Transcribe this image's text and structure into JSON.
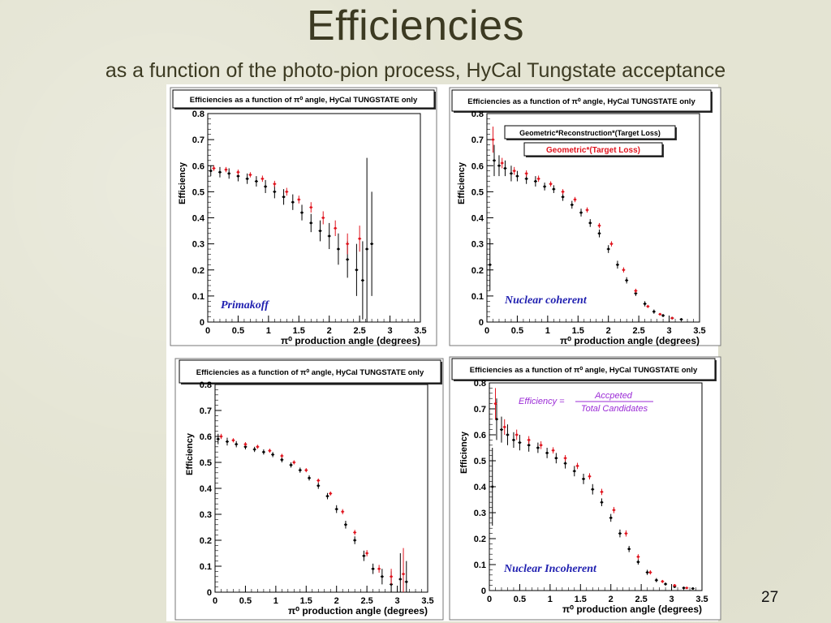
{
  "slide": {
    "title": "Efficiencies",
    "subtitle": "as a function of the photo-pion process, HyCal Tungstate acceptance",
    "page_number": "27"
  },
  "colors": {
    "background": "#e4e4d3",
    "title_text": "#3c3a22",
    "series_black": "#000000",
    "series_red": "#e0141e",
    "annotation_blue": "#1f1fb0",
    "formula_purple": "#9b2bd6"
  },
  "chart_data": [
    {
      "type": "scatter",
      "panel": "top-left",
      "title": "Efficiencies as a function of π⁰ angle, HyCal TUNGSTATE only",
      "xlabel": "π⁰ production angle (degrees)",
      "ylabel": "Efficiency",
      "xlim": [
        0,
        3.5
      ],
      "ylim": [
        0,
        0.8
      ],
      "xticks": [
        "0",
        "0.5",
        "1",
        "1.5",
        "2",
        "2.5",
        "3",
        "3.5"
      ],
      "yticks": [
        "0",
        "0.1",
        "0.2",
        "0.3",
        "0.4",
        "0.5",
        "0.6",
        "0.7",
        "0.8"
      ],
      "annotation": "Primakoff",
      "grid": false,
      "series": [
        {
          "color": "#000000",
          "x": [
            0.05,
            0.2,
            0.35,
            0.5,
            0.65,
            0.8,
            0.95,
            1.1,
            1.25,
            1.4,
            1.55,
            1.7,
            1.85,
            2.0,
            2.15,
            2.3,
            2.45,
            2.55,
            2.62,
            2.7
          ],
          "y": [
            0.58,
            0.575,
            0.57,
            0.56,
            0.55,
            0.54,
            0.52,
            0.5,
            0.48,
            0.46,
            0.42,
            0.38,
            0.35,
            0.33,
            0.28,
            0.24,
            0.2,
            0.16,
            0.28,
            0.3
          ],
          "err": [
            0.02,
            0.02,
            0.02,
            0.02,
            0.02,
            0.02,
            0.025,
            0.025,
            0.03,
            0.03,
            0.03,
            0.035,
            0.04,
            0.05,
            0.06,
            0.07,
            0.1,
            0.15,
            0.35,
            0.2
          ]
        },
        {
          "color": "#e0141e",
          "x": [
            0.1,
            0.3,
            0.5,
            0.7,
            0.9,
            1.1,
            1.3,
            1.5,
            1.7,
            1.9,
            2.1,
            2.3,
            2.5
          ],
          "y": [
            0.59,
            0.585,
            0.575,
            0.565,
            0.55,
            0.53,
            0.5,
            0.47,
            0.44,
            0.4,
            0.36,
            0.3,
            0.32
          ],
          "err": [
            0.01,
            0.01,
            0.01,
            0.01,
            0.012,
            0.012,
            0.015,
            0.015,
            0.02,
            0.025,
            0.03,
            0.04,
            0.05
          ]
        }
      ]
    },
    {
      "type": "scatter",
      "panel": "top-right",
      "title": "Efficiencies as a function of π⁰ angle, HyCal TUNGSTATE only",
      "xlabel": "π⁰ production angle (degrees)",
      "ylabel": "Efficiency",
      "xlim": [
        0,
        3.5
      ],
      "ylim": [
        0,
        0.8
      ],
      "xticks": [
        "0",
        "0.5",
        "1",
        "1.5",
        "2",
        "2.5",
        "3",
        "3.5"
      ],
      "yticks": [
        "0",
        "0.1",
        "0.2",
        "0.3",
        "0.4",
        "0.5",
        "0.6",
        "0.7",
        "0.8"
      ],
      "annotation": "Nuclear coherent",
      "legend": [
        "Geometric*Reconstruction*(Target Loss)",
        "Geometric*(Target Loss)"
      ],
      "grid": false,
      "series": [
        {
          "name": "Geometric*Reconstruction*(Target Loss)",
          "color": "#000000",
          "x": [
            0.05,
            0.12,
            0.2,
            0.3,
            0.4,
            0.5,
            0.65,
            0.8,
            0.95,
            1.1,
            1.25,
            1.4,
            1.55,
            1.7,
            1.85,
            2.0,
            2.15,
            2.3,
            2.45,
            2.6,
            2.75,
            2.9,
            3.05,
            3.2
          ],
          "y": [
            0.22,
            0.62,
            0.6,
            0.59,
            0.57,
            0.56,
            0.55,
            0.54,
            0.52,
            0.51,
            0.48,
            0.45,
            0.42,
            0.38,
            0.34,
            0.28,
            0.22,
            0.16,
            0.11,
            0.07,
            0.04,
            0.025,
            0.015,
            0.01
          ],
          "err": [
            0.1,
            0.06,
            0.04,
            0.03,
            0.03,
            0.02,
            0.02,
            0.02,
            0.015,
            0.015,
            0.015,
            0.015,
            0.015,
            0.015,
            0.015,
            0.015,
            0.015,
            0.012,
            0.01,
            0.01,
            0.008,
            0.006,
            0.005,
            0.005
          ]
        },
        {
          "name": "Geometric*(Target Loss)",
          "color": "#e0141e",
          "x": [
            0.1,
            0.25,
            0.45,
            0.65,
            0.85,
            1.05,
            1.25,
            1.45,
            1.65,
            1.85,
            2.05,
            2.25,
            2.45,
            2.65,
            2.85,
            3.05
          ],
          "y": [
            0.7,
            0.61,
            0.58,
            0.57,
            0.55,
            0.53,
            0.5,
            0.47,
            0.43,
            0.37,
            0.3,
            0.2,
            0.12,
            0.06,
            0.03,
            0.015
          ],
          "err": [
            0.05,
            0.02,
            0.015,
            0.012,
            0.012,
            0.01,
            0.01,
            0.01,
            0.01,
            0.01,
            0.01,
            0.01,
            0.008,
            0.006,
            0.005,
            0.004
          ]
        }
      ]
    },
    {
      "type": "scatter",
      "panel": "bottom-left",
      "title": "Efficiencies as a function of π⁰ angle, HyCal TUNGSTATE only",
      "xlabel": "π⁰ production angle (degrees)",
      "ylabel": "Efficiency",
      "xlim": [
        0,
        3.5
      ],
      "ylim": [
        0,
        0.8
      ],
      "xticks": [
        "0",
        "0.5",
        "1",
        "1.5",
        "2",
        "2.5",
        "3",
        "3.5"
      ],
      "yticks": [
        "0",
        "0.1",
        "0.2",
        "0.3",
        "0.4",
        "0.5",
        "0.6",
        "0.7",
        "0.8"
      ],
      "grid": false,
      "series": [
        {
          "color": "#000000",
          "x": [
            0.05,
            0.2,
            0.35,
            0.5,
            0.65,
            0.8,
            0.95,
            1.1,
            1.25,
            1.4,
            1.55,
            1.7,
            1.85,
            2.0,
            2.15,
            2.3,
            2.45,
            2.6,
            2.75,
            2.9,
            3.05,
            3.15
          ],
          "y": [
            0.59,
            0.58,
            0.57,
            0.56,
            0.55,
            0.54,
            0.53,
            0.51,
            0.49,
            0.47,
            0.44,
            0.41,
            0.37,
            0.32,
            0.26,
            0.2,
            0.14,
            0.09,
            0.06,
            0.03,
            0.05,
            0.04
          ],
          "err": [
            0.02,
            0.015,
            0.012,
            0.01,
            0.01,
            0.01,
            0.01,
            0.01,
            0.01,
            0.01,
            0.01,
            0.012,
            0.012,
            0.015,
            0.015,
            0.015,
            0.02,
            0.02,
            0.03,
            0.05,
            0.1,
            0.08
          ]
        },
        {
          "color": "#e0141e",
          "x": [
            0.1,
            0.3,
            0.5,
            0.7,
            0.9,
            1.1,
            1.3,
            1.5,
            1.7,
            1.9,
            2.1,
            2.3,
            2.5,
            2.7,
            2.9,
            3.1
          ],
          "y": [
            0.6,
            0.585,
            0.57,
            0.56,
            0.545,
            0.525,
            0.5,
            0.47,
            0.43,
            0.38,
            0.31,
            0.23,
            0.15,
            0.09,
            0.06,
            0.07
          ],
          "err": [
            0.01,
            0.008,
            0.008,
            0.008,
            0.008,
            0.008,
            0.008,
            0.008,
            0.008,
            0.008,
            0.01,
            0.01,
            0.012,
            0.015,
            0.03,
            0.1
          ]
        }
      ]
    },
    {
      "type": "scatter",
      "panel": "bottom-right",
      "title": "Efficiencies as a function of π⁰ angle, HyCal TUNGSTATE only",
      "xlabel": "π⁰ production angle (degrees)",
      "ylabel": "Efficiency",
      "xlim": [
        0,
        3.5
      ],
      "ylim": [
        0,
        0.8
      ],
      "xticks": [
        "0",
        "0.5",
        "1",
        "1.5",
        "2",
        "2.5",
        "3",
        "3.5"
      ],
      "yticks": [
        "0",
        "0.1",
        "0.2",
        "0.3",
        "0.4",
        "0.5",
        "0.6",
        "0.7",
        "0.8"
      ],
      "annotation": "Nuclear Incoherent",
      "formula": {
        "lhs": "Efficiency =",
        "numerator": "Accpeted",
        "denominator": "Total Candidates"
      },
      "grid": false,
      "series": [
        {
          "color": "#000000",
          "x": [
            0.05,
            0.12,
            0.2,
            0.3,
            0.4,
            0.5,
            0.65,
            0.8,
            0.95,
            1.1,
            1.25,
            1.4,
            1.55,
            1.7,
            1.85,
            2.0,
            2.15,
            2.3,
            2.45,
            2.6,
            2.75,
            2.9,
            3.05,
            3.2,
            3.35
          ],
          "y": [
            0.4,
            0.66,
            0.62,
            0.6,
            0.58,
            0.57,
            0.56,
            0.55,
            0.53,
            0.51,
            0.49,
            0.46,
            0.43,
            0.39,
            0.34,
            0.28,
            0.22,
            0.16,
            0.11,
            0.07,
            0.04,
            0.025,
            0.015,
            0.01,
            0.008
          ],
          "err": [
            0.15,
            0.08,
            0.05,
            0.04,
            0.03,
            0.03,
            0.025,
            0.02,
            0.02,
            0.02,
            0.02,
            0.02,
            0.02,
            0.02,
            0.015,
            0.015,
            0.015,
            0.012,
            0.01,
            0.01,
            0.008,
            0.006,
            0.005,
            0.005,
            0.004
          ]
        },
        {
          "color": "#e0141e",
          "x": [
            0.1,
            0.25,
            0.45,
            0.65,
            0.85,
            1.05,
            1.25,
            1.45,
            1.65,
            1.85,
            2.05,
            2.25,
            2.45,
            2.65,
            2.85,
            3.05,
            3.25
          ],
          "y": [
            0.72,
            0.63,
            0.6,
            0.58,
            0.56,
            0.54,
            0.51,
            0.48,
            0.44,
            0.38,
            0.31,
            0.22,
            0.13,
            0.07,
            0.035,
            0.02,
            0.01
          ],
          "err": [
            0.06,
            0.03,
            0.02,
            0.015,
            0.015,
            0.012,
            0.012,
            0.012,
            0.012,
            0.012,
            0.012,
            0.012,
            0.01,
            0.008,
            0.006,
            0.005,
            0.004
          ]
        }
      ]
    }
  ]
}
